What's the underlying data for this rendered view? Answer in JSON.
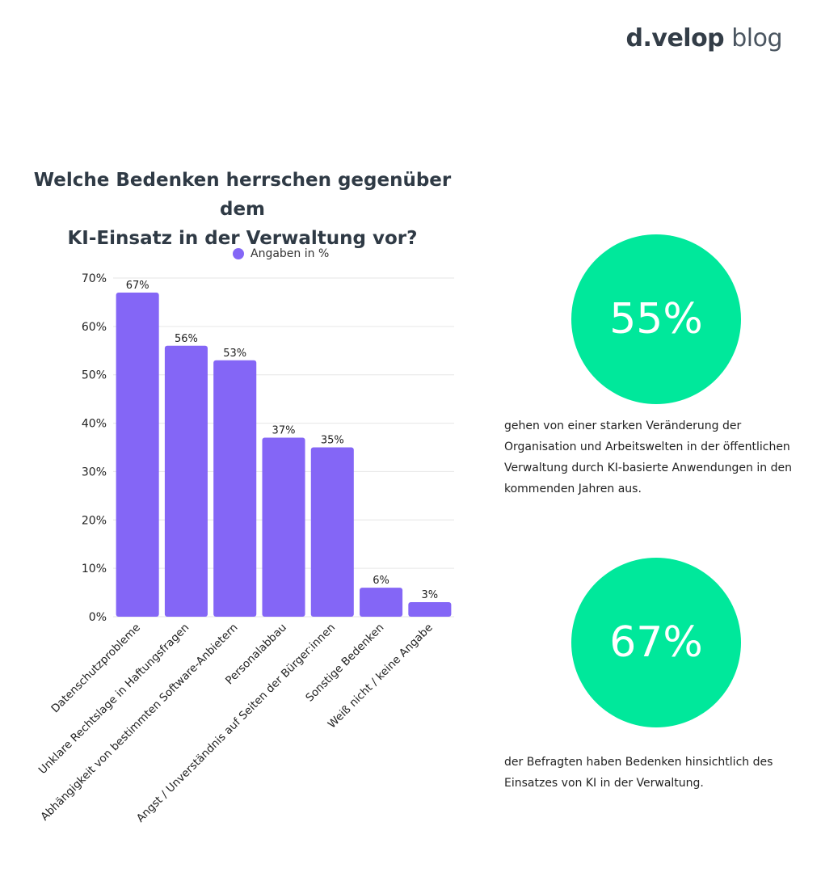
{
  "logo": {
    "brand": "d.velop",
    "suffix": "blog"
  },
  "colors": {
    "bar": "#8466f6",
    "circle": "#00e89b",
    "grid": "#e6e6e6",
    "title": "#2f3a45"
  },
  "chart_data": {
    "type": "bar",
    "title_line1": "Welche Bedenken herrschen gegenüber dem",
    "title_line2": "KI-Einsatz in der Verwaltung vor?",
    "legend": "Angaben in %",
    "legend_placement": "top",
    "grid": true,
    "ylim": [
      0,
      70
    ],
    "yticks": [
      0,
      10,
      20,
      30,
      40,
      50,
      60,
      70
    ],
    "ytick_labels": [
      "0%",
      "10%",
      "20%",
      "30%",
      "40%",
      "50%",
      "60%",
      "70%"
    ],
    "categories": [
      "Datenschutzprobleme",
      "Unklare Rechtslage in Haftungsfragen",
      "Abhängigkeit von bestimmten Software-Anbietern",
      "Personalabbau",
      "Angst / Unverständnis auf Seiten der Bürger:innen",
      "Sonstige Bedenken",
      "Weiß nicht / keine Angabe"
    ],
    "values": [
      67,
      56,
      53,
      37,
      35,
      6,
      3
    ],
    "value_labels": [
      "67%",
      "56%",
      "53%",
      "37%",
      "35%",
      "6%",
      "3%"
    ]
  },
  "stats": [
    {
      "value": "55%",
      "text": "gehen von einer starken Veränderung der Organisation und Arbeitswelten in der öffentlichen Verwaltung durch KI-basierte Anwendungen in den kommenden Jahren aus."
    },
    {
      "value": "67%",
      "text": "der Befragten haben Bedenken hinsichtlich des Einsatzes von KI in der Verwaltung."
    }
  ]
}
